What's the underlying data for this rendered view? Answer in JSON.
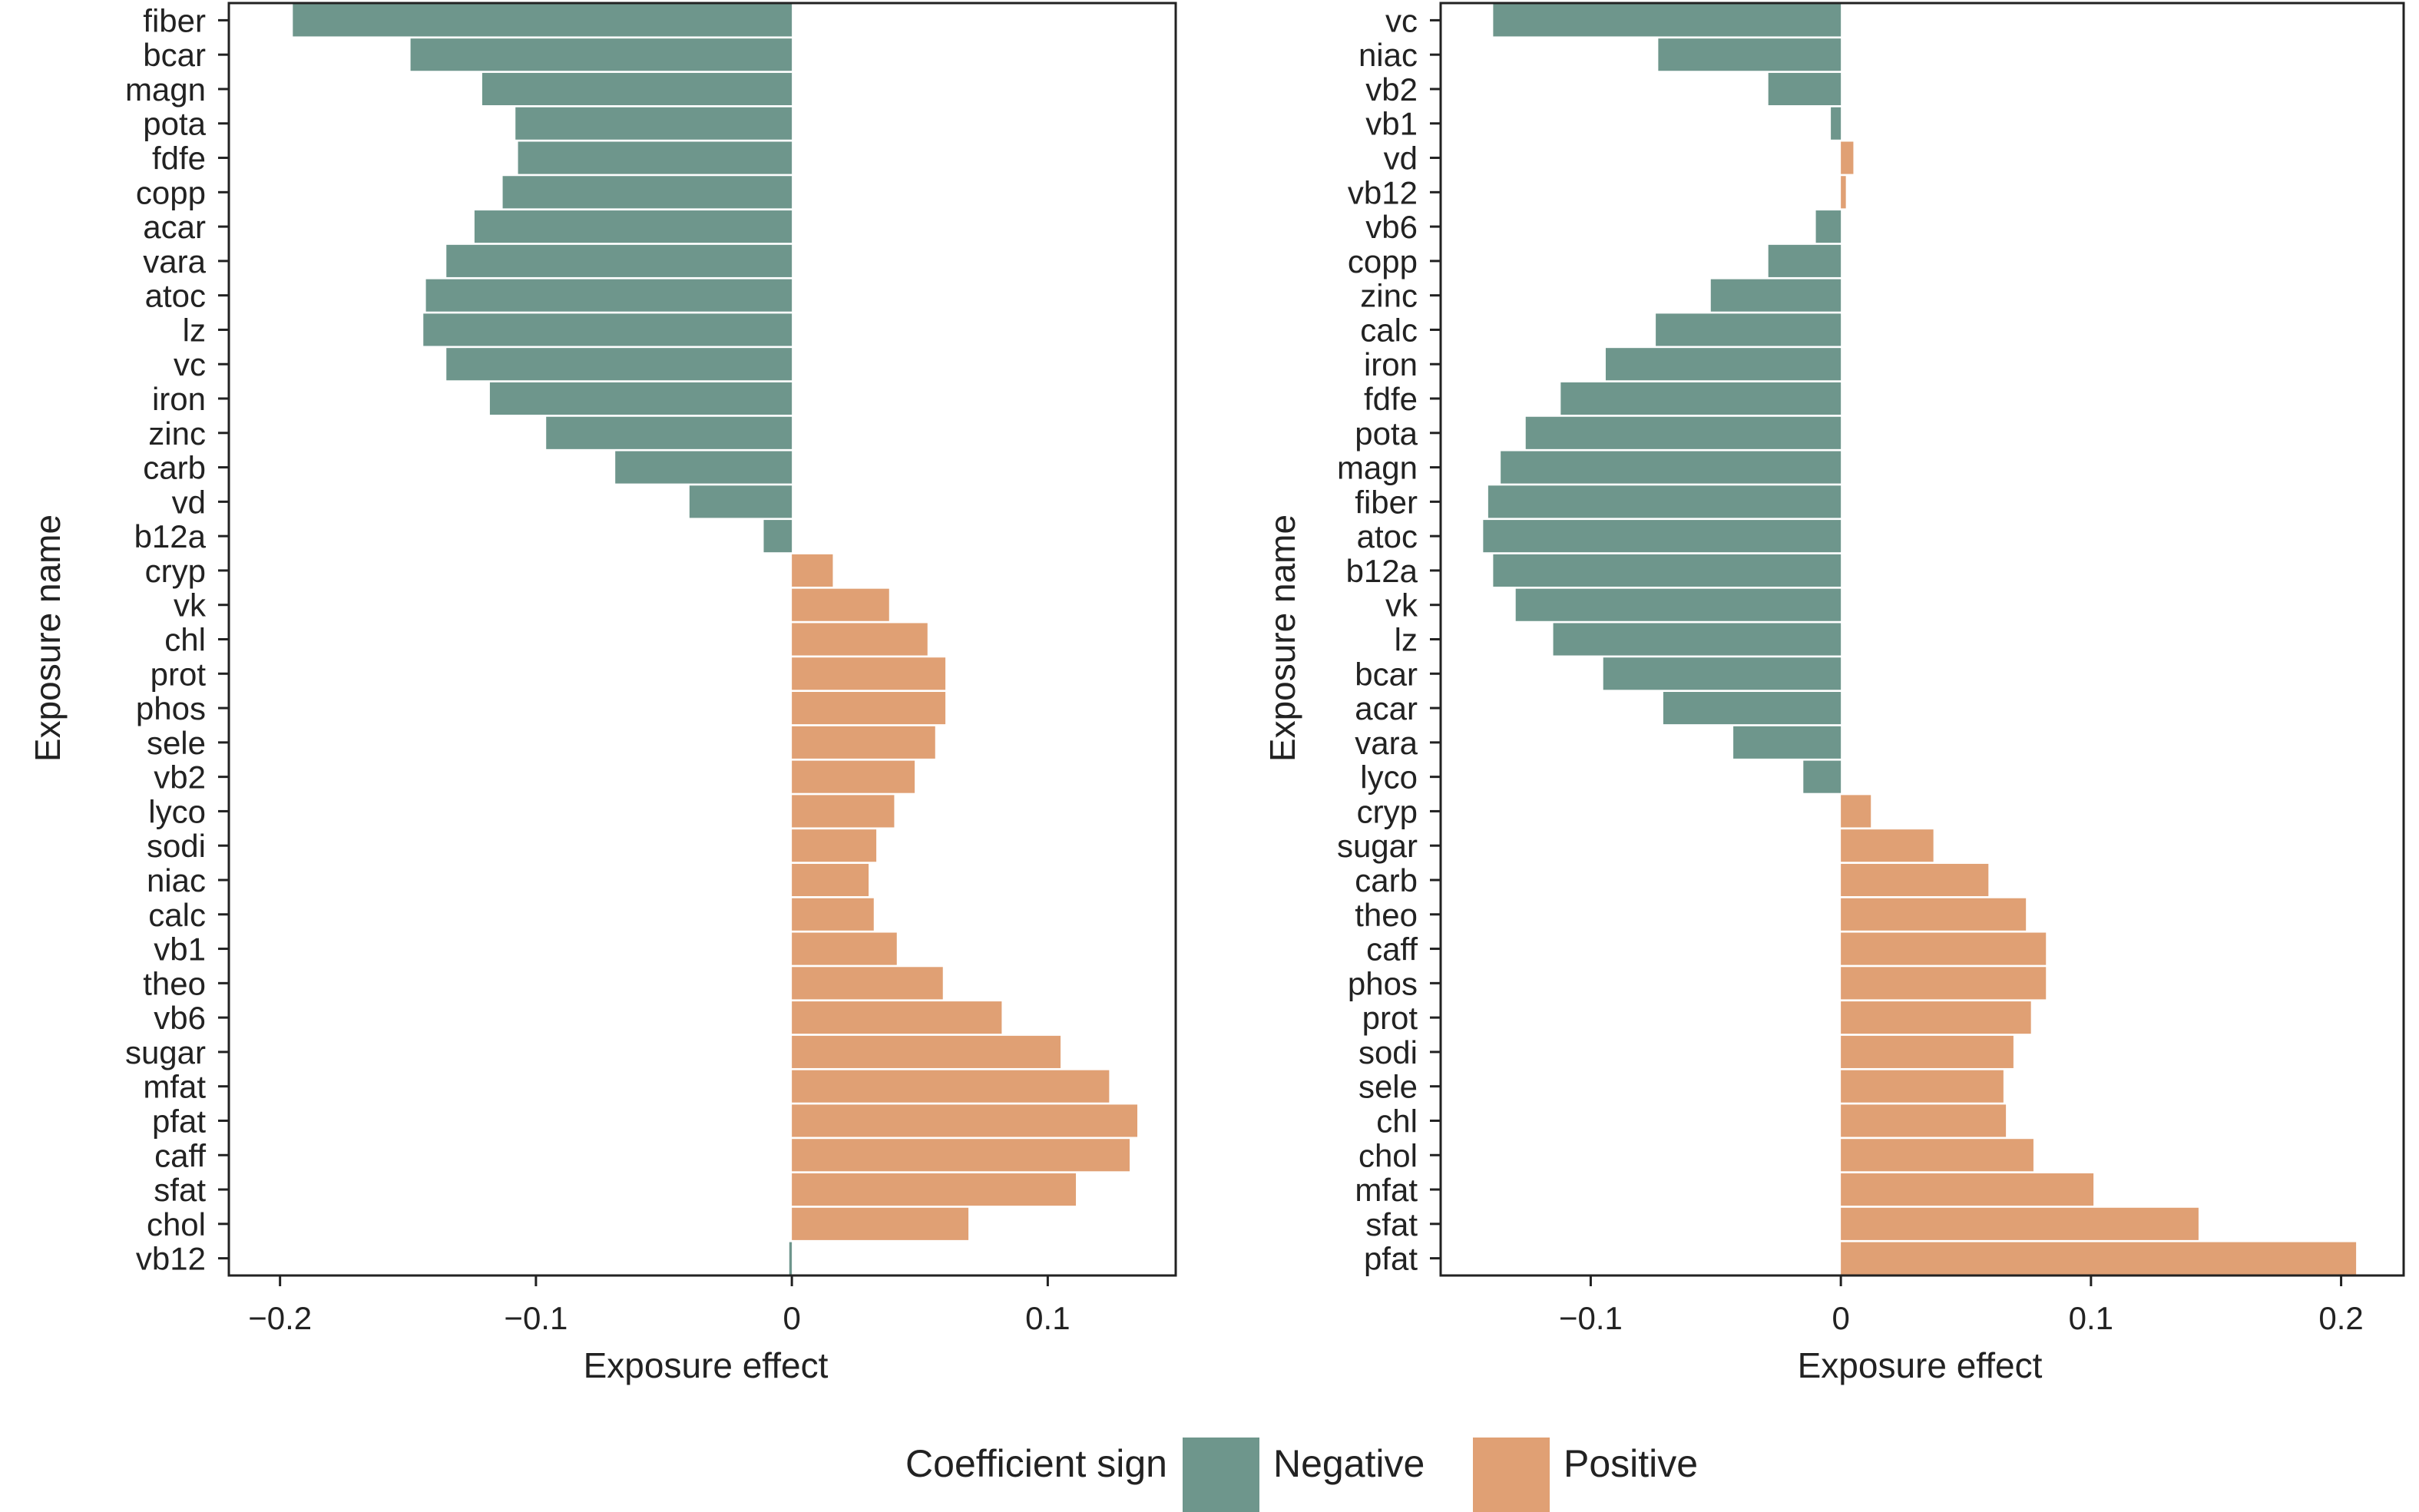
{
  "legend": {
    "title": "Coefficient sign",
    "items": [
      {
        "label": "Negative",
        "color": "#6e968c"
      },
      {
        "label": "Positive",
        "color": "#e0a074"
      }
    ]
  },
  "chart_data": [
    {
      "type": "bar",
      "orientation": "horizontal",
      "xlabel": "Exposure effect",
      "ylabel": "Exposure name",
      "xlim": [
        -0.22,
        0.15
      ],
      "xticks": [
        -0.2,
        -0.1,
        0,
        0.1
      ],
      "xtick_labels": [
        "−0.2",
        "−0.1",
        "0",
        "0.1"
      ],
      "categories": [
        "fiber",
        "bcar",
        "magn",
        "pota",
        "fdfe",
        "copp",
        "acar",
        "vara",
        "atoc",
        "lz",
        "vc",
        "iron",
        "zinc",
        "carb",
        "vd",
        "b12a",
        "cryp",
        "vk",
        "chl",
        "prot",
        "phos",
        "sele",
        "vb2",
        "lyco",
        "sodi",
        "niac",
        "calc",
        "vb1",
        "theo",
        "vb6",
        "sugar",
        "mfat",
        "pfat",
        "caff",
        "sfat",
        "chol",
        "vb12"
      ],
      "values": [
        -0.195,
        -0.149,
        -0.121,
        -0.108,
        -0.107,
        -0.113,
        -0.124,
        -0.135,
        -0.143,
        -0.144,
        -0.135,
        -0.118,
        -0.096,
        -0.069,
        -0.04,
        -0.011,
        0.016,
        0.038,
        0.053,
        0.06,
        0.06,
        0.056,
        0.048,
        0.04,
        0.033,
        0.03,
        0.032,
        0.041,
        0.059,
        0.082,
        0.105,
        0.124,
        0.135,
        0.132,
        0.111,
        0.069,
        -0.001
      ]
    },
    {
      "type": "bar",
      "orientation": "horizontal",
      "xlabel": "Exposure effect",
      "ylabel": "Exposure name",
      "xlim": [
        -0.16,
        0.225
      ],
      "xticks": [
        -0.1,
        0,
        0.1,
        0.2
      ],
      "xtick_labels": [
        "−0.1",
        "0",
        "0.1",
        "0.2"
      ],
      "categories": [
        "vc",
        "niac",
        "vb2",
        "vb1",
        "vd",
        "vb12",
        "vb6",
        "copp",
        "zinc",
        "calc",
        "iron",
        "fdfe",
        "pota",
        "magn",
        "fiber",
        "atoc",
        "b12a",
        "vk",
        "lz",
        "bcar",
        "acar",
        "vara",
        "lyco",
        "cryp",
        "sugar",
        "carb",
        "theo",
        "caff",
        "phos",
        "prot",
        "sodi",
        "sele",
        "chl",
        "chol",
        "mfat",
        "sfat",
        "pfat"
      ],
      "values": [
        -0.139,
        -0.073,
        -0.029,
        -0.004,
        0.005,
        0.002,
        -0.01,
        -0.029,
        -0.052,
        -0.074,
        -0.094,
        -0.112,
        -0.126,
        -0.136,
        -0.141,
        -0.143,
        -0.139,
        -0.13,
        -0.115,
        -0.095,
        -0.071,
        -0.043,
        -0.015,
        0.012,
        0.037,
        0.059,
        0.074,
        0.082,
        0.082,
        0.076,
        0.069,
        0.065,
        0.066,
        0.077,
        0.101,
        0.143,
        0.206
      ]
    }
  ]
}
